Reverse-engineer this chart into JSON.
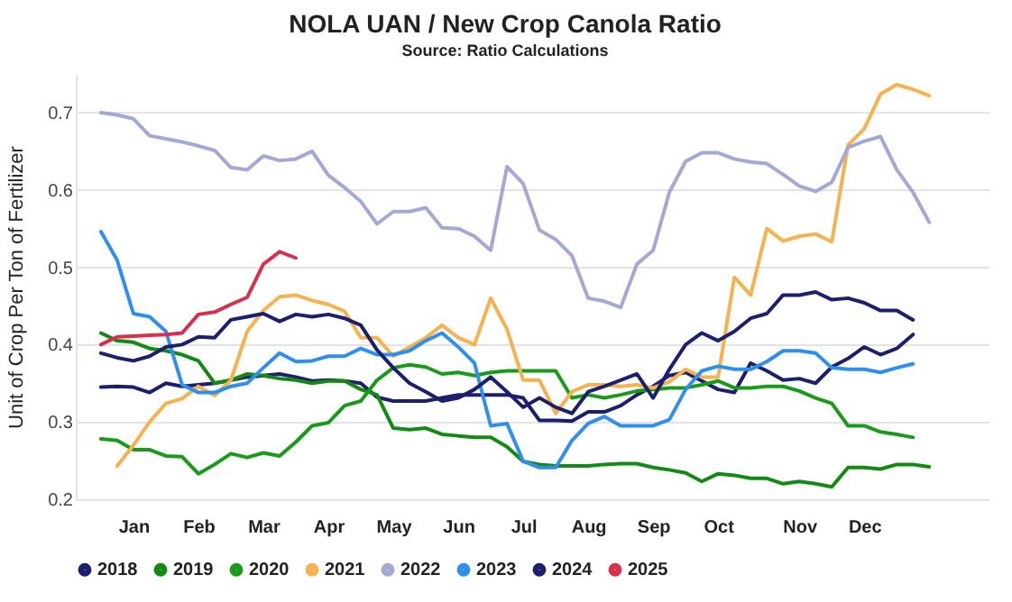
{
  "chart_data": {
    "type": "line",
    "title": "NOLA UAN / New Crop Canola Ratio",
    "subtitle": "Source: Ratio Calculations",
    "ylabel": "Unit of Crop Per Ton of Fertilizer",
    "categories": [
      null,
      null,
      "Jan",
      null,
      null,
      null,
      "Feb",
      null,
      null,
      null,
      "Mar",
      null,
      null,
      null,
      "Apr",
      null,
      null,
      null,
      "May",
      null,
      null,
      null,
      "Jun",
      null,
      null,
      null,
      "Jul",
      null,
      null,
      null,
      "Aug",
      null,
      null,
      null,
      "Sep",
      null,
      null,
      null,
      "Oct",
      null,
      null,
      null,
      null,
      "Nov",
      null,
      null,
      null,
      "Dec",
      null,
      null,
      null,
      null
    ],
    "ylim": [
      0.2,
      0.75
    ],
    "yticks": [
      0.2,
      0.3,
      0.4,
      0.5,
      0.6,
      0.7
    ],
    "grid": "y",
    "legend": "bottom",
    "line_style": "solid",
    "series": [
      {
        "name": "2018",
        "color": "#1c1f6e",
        "values": [
          0.345,
          0.346,
          0.345,
          0.338,
          0.35,
          0.346,
          0.348,
          0.35,
          0.354,
          0.358,
          0.36,
          0.362,
          0.358,
          0.353,
          0.354,
          0.353,
          0.35,
          0.332,
          0.327,
          0.327,
          0.327,
          0.331,
          0.335,
          0.335,
          0.335,
          0.335,
          0.331,
          0.302,
          0.302,
          0.301,
          0.313,
          0.313,
          0.321,
          0.335,
          0.346,
          0.36,
          0.364,
          0.353,
          0.342,
          0.338,
          0.376,
          0.366,
          0.354,
          0.356,
          0.35,
          0.371,
          0.382,
          0.397,
          0.387,
          0.395,
          0.413,
          null
        ]
      },
      {
        "name": "2019",
        "color": "#138a13",
        "values": [
          0.415,
          0.405,
          0.403,
          0.395,
          0.392,
          0.387,
          0.379,
          0.35,
          0.354,
          0.362,
          0.36,
          0.356,
          0.354,
          0.35,
          0.353,
          0.353,
          0.342,
          0.335,
          0.292,
          0.29,
          0.292,
          0.284,
          0.282,
          0.28,
          0.28,
          0.268,
          0.249,
          0.245,
          0.243,
          0.243,
          0.243,
          0.245,
          0.246,
          0.246,
          0.241,
          0.238,
          0.234,
          0.223,
          0.233,
          0.231,
          0.227,
          0.227,
          0.22,
          0.223,
          0.22,
          0.216,
          0.241,
          0.241,
          0.239,
          0.245,
          0.245,
          0.242
        ]
      },
      {
        "name": "2020",
        "color": "#1a9a1a",
        "values": [
          0.278,
          0.276,
          0.264,
          0.264,
          0.256,
          0.255,
          0.233,
          0.245,
          0.259,
          0.254,
          0.26,
          0.256,
          0.274,
          0.295,
          0.299,
          0.321,
          0.327,
          0.354,
          0.37,
          0.374,
          0.371,
          0.362,
          0.364,
          0.36,
          0.364,
          0.366,
          0.366,
          0.366,
          0.366,
          0.331,
          0.335,
          0.331,
          0.335,
          0.34,
          0.342,
          0.344,
          0.344,
          0.348,
          0.353,
          0.344,
          0.344,
          0.346,
          0.346,
          0.34,
          0.331,
          0.324,
          0.295,
          0.295,
          0.287,
          0.284,
          0.28,
          null
        ]
      },
      {
        "name": "2021",
        "color": "#f6b24e",
        "values": [
          null,
          0.243,
          0.27,
          0.3,
          0.324,
          0.33,
          0.346,
          0.334,
          0.354,
          0.417,
          0.444,
          0.462,
          0.464,
          0.457,
          0.452,
          0.443,
          0.409,
          0.409,
          0.385,
          0.397,
          0.409,
          0.425,
          0.409,
          0.4,
          0.46,
          0.42,
          0.354,
          0.354,
          0.311,
          0.339,
          0.348,
          0.348,
          0.346,
          0.348,
          0.344,
          0.352,
          0.368,
          0.358,
          0.358,
          0.487,
          0.464,
          0.55,
          0.534,
          0.54,
          0.543,
          0.533,
          0.658,
          0.679,
          0.724,
          0.736,
          0.73,
          0.722
        ]
      },
      {
        "name": "2022",
        "color": "#a4a8d4",
        "values": [
          0.7,
          0.697,
          0.692,
          0.67,
          0.666,
          0.662,
          0.657,
          0.651,
          0.629,
          0.626,
          0.644,
          0.638,
          0.64,
          0.65,
          0.619,
          0.603,
          0.585,
          0.556,
          0.572,
          0.572,
          0.577,
          0.551,
          0.55,
          0.54,
          0.522,
          0.63,
          0.608,
          0.548,
          0.536,
          0.515,
          0.46,
          0.456,
          0.448,
          0.504,
          0.522,
          0.597,
          0.637,
          0.648,
          0.648,
          0.64,
          0.636,
          0.634,
          0.62,
          0.605,
          0.598,
          0.61,
          0.655,
          0.663,
          0.669,
          0.626,
          0.597,
          0.558
        ]
      },
      {
        "name": "2023",
        "color": "#2f8ff0",
        "values": [
          0.546,
          0.509,
          0.44,
          0.436,
          0.417,
          0.348,
          0.338,
          0.338,
          0.346,
          0.35,
          0.37,
          0.389,
          0.378,
          0.379,
          0.385,
          0.385,
          0.395,
          0.387,
          0.387,
          0.392,
          0.405,
          0.415,
          0.397,
          0.376,
          0.295,
          0.298,
          0.249,
          0.241,
          0.241,
          0.276,
          0.298,
          0.307,
          0.295,
          0.295,
          0.295,
          0.303,
          0.342,
          0.366,
          0.372,
          0.368,
          0.368,
          0.378,
          0.392,
          0.392,
          0.389,
          0.37,
          0.368,
          0.368,
          0.364,
          0.37,
          0.375,
          null
        ]
      },
      {
        "name": "2024",
        "color": "#1c1f6e",
        "values": [
          0.389,
          0.383,
          0.379,
          0.385,
          0.397,
          0.4,
          0.41,
          0.409,
          0.432,
          0.436,
          0.44,
          0.43,
          0.439,
          0.436,
          0.439,
          0.434,
          0.425,
          0.393,
          0.37,
          0.35,
          0.339,
          0.327,
          0.331,
          0.342,
          0.358,
          0.339,
          0.319,
          0.331,
          0.319,
          0.311,
          0.339,
          0.346,
          0.354,
          0.362,
          0.331,
          0.368,
          0.4,
          0.415,
          0.405,
          0.417,
          0.434,
          0.44,
          0.464,
          0.464,
          0.468,
          0.458,
          0.46,
          0.454,
          0.444,
          0.444,
          0.432,
          null
        ]
      },
      {
        "name": "2025",
        "color": "#d7304f",
        "values": [
          0.4,
          0.41,
          0.411,
          0.412,
          0.413,
          0.415,
          0.439,
          0.442,
          0.452,
          0.461,
          0.504,
          0.52,
          0.512,
          null,
          null,
          null,
          null,
          null,
          null,
          null,
          null,
          null,
          null,
          null,
          null,
          null,
          null,
          null,
          null,
          null,
          null,
          null,
          null,
          null,
          null,
          null,
          null,
          null,
          null,
          null,
          null,
          null,
          null,
          null,
          null,
          null,
          null,
          null,
          null,
          null,
          null,
          null
        ]
      }
    ]
  }
}
